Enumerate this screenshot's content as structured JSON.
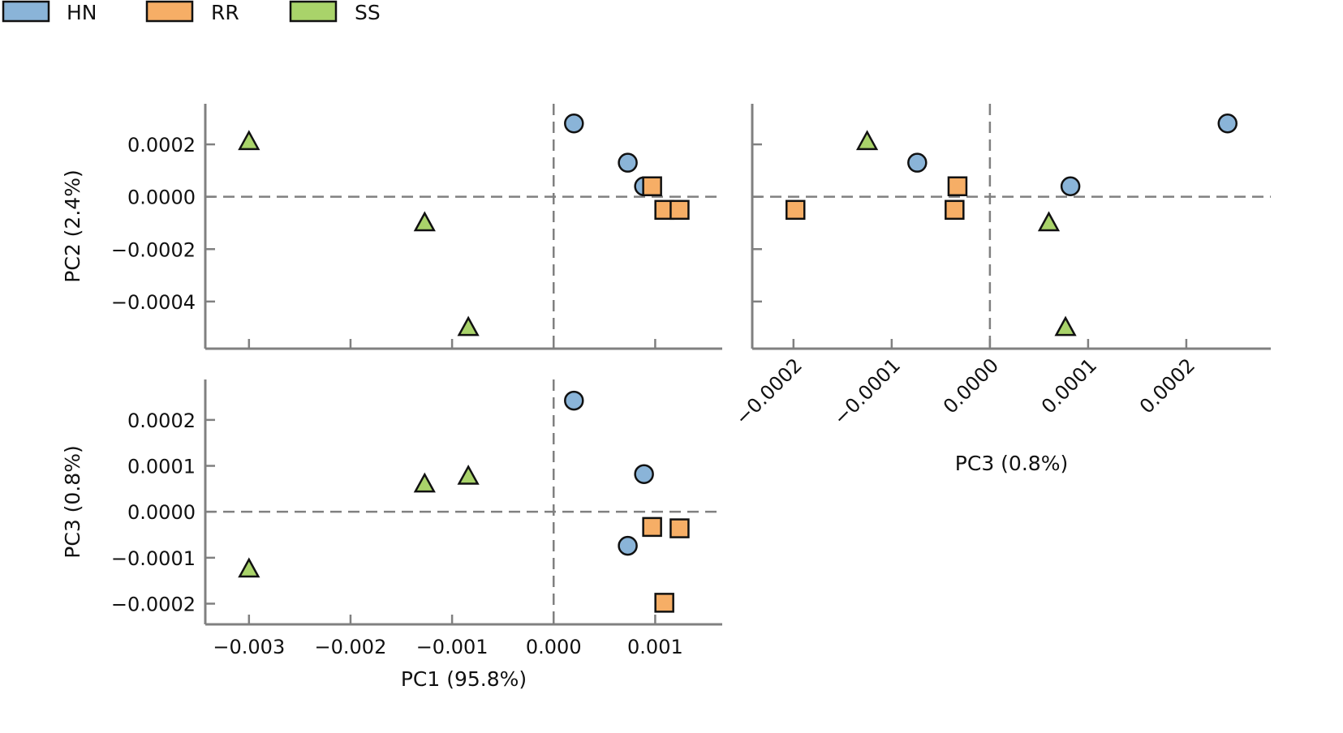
{
  "legend": [
    {
      "name": "HN",
      "color": "#8AB4D8",
      "marker": "circle"
    },
    {
      "name": "RR",
      "color": "#F6AE66",
      "marker": "square"
    },
    {
      "name": "SS",
      "color": "#A9D36A",
      "marker": "triangle"
    }
  ],
  "points": {
    "HN": [
      {
        "pc1": 0.0002,
        "pc2": 0.00028,
        "pc3": 0.000242
      },
      {
        "pc1": 0.00073,
        "pc2": 0.00013,
        "pc3": -7.4e-05
      },
      {
        "pc1": 0.00089,
        "pc2": 4e-05,
        "pc3": 8.2e-05
      }
    ],
    "RR": [
      {
        "pc1": 0.00097,
        "pc2": 4e-05,
        "pc3": -3.3e-05
      },
      {
        "pc1": 0.00109,
        "pc2": -5e-05,
        "pc3": -0.000198
      },
      {
        "pc1": 0.00124,
        "pc2": -5e-05,
        "pc3": -3.6e-05
      }
    ],
    "SS": [
      {
        "pc1": -0.003,
        "pc2": 0.00021,
        "pc3": -0.000125
      },
      {
        "pc1": -0.00127,
        "pc2": -0.0001,
        "pc3": 6e-05
      },
      {
        "pc1": -0.00084,
        "pc2": -0.0005,
        "pc3": 7.7e-05
      }
    ]
  },
  "chart_data": [
    {
      "type": "scatter",
      "panel": "PC1 vs PC2",
      "xlabel": "",
      "ylabel": "PC2 (2.4%)",
      "x_axis": "pc1",
      "y_axis": "pc2",
      "xlim": [
        -0.00343,
        0.00166
      ],
      "ylim": [
        -0.00058,
        0.000355
      ],
      "yticks": [
        0.0002,
        0.0,
        -0.0002,
        -0.0004
      ],
      "ytick_labels": [
        "0.0002",
        "0.0000",
        "−0.0002",
        "−0.0004"
      ],
      "xticks": [
        -0.003,
        -0.002,
        -0.001,
        0.0,
        0.001
      ],
      "show_xtick_labels": false,
      "show_ytick_labels": true,
      "zero_lines": true
    },
    {
      "type": "scatter",
      "panel": "PC3 vs PC2",
      "xlabel": "PC3 (0.8%)",
      "ylabel": "",
      "x_axis": "pc3",
      "y_axis": "pc2",
      "xlim": [
        -0.000242,
        0.000286
      ],
      "ylim": [
        -0.00058,
        0.000355
      ],
      "xticks": [
        -0.0002,
        -0.0001,
        0.0,
        0.0001,
        0.0002
      ],
      "xtick_labels": [
        "−0.0002",
        "−0.0001",
        "0.0000",
        "0.0001",
        "0.0002"
      ],
      "yticks": [
        0.0002,
        0.0,
        -0.0002,
        -0.0004
      ],
      "show_xtick_labels": true,
      "rotate_xtick_labels": true,
      "show_ytick_labels": false,
      "zero_lines": true
    },
    {
      "type": "scatter",
      "panel": "PC1 vs PC3",
      "xlabel": "PC1 (95.8%)",
      "ylabel": "PC3 (0.8%)",
      "x_axis": "pc1",
      "y_axis": "pc3",
      "xlim": [
        -0.00343,
        0.00166
      ],
      "ylim": [
        -0.000245,
        0.000288
      ],
      "xticks": [
        -0.003,
        -0.002,
        -0.001,
        0.0,
        0.001
      ],
      "xtick_labels": [
        "−0.003",
        "−0.002",
        "−0.001",
        "0.000",
        "0.001"
      ],
      "yticks": [
        0.0002,
        0.0001,
        0.0,
        -0.0001,
        -0.0002
      ],
      "ytick_labels": [
        "0.0002",
        "0.0001",
        "0.0000",
        "−0.0001",
        "−0.0002"
      ],
      "show_xtick_labels": true,
      "show_ytick_labels": true,
      "zero_lines": true
    }
  ]
}
